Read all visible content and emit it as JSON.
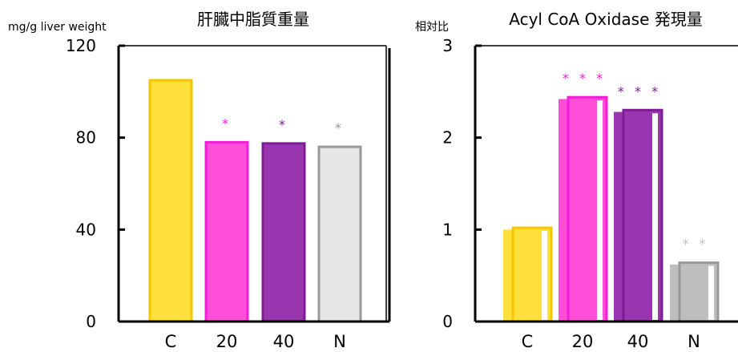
{
  "chart_data": [
    {
      "type": "bar",
      "title": "肝臓中脂質重量",
      "ylabel": "mg/g liver weight",
      "xlabel": "",
      "categories": [
        "C",
        "20",
        "40",
        "N"
      ],
      "values": [
        105,
        78,
        77.5,
        76
      ],
      "ylim": [
        0,
        120
      ],
      "yticks": [
        0,
        40,
        80,
        120
      ],
      "significance": [
        "",
        "*",
        "*",
        "*"
      ],
      "colors": {
        "fill": [
          "#FFE03A",
          "#FF4ED8",
          "#9A35B0",
          "#E6E6E6"
        ],
        "stroke": [
          "#F7C400",
          "#F41CD8",
          "#7E1C95",
          "#999999"
        ],
        "marks": [
          "#000000",
          "#F41CD8",
          "#7E1C95",
          "#999999"
        ]
      },
      "grid": false,
      "legend": "none"
    },
    {
      "type": "bar",
      "title": "Acyl CoA Oxidase 発現量",
      "ylabel": "相対比",
      "xlabel": "",
      "categories": [
        "C",
        "20",
        "40",
        "N"
      ],
      "series": [
        {
          "values": [
            1.0,
            2.42,
            2.28,
            0.62
          ]
        },
        {
          "values": [
            1.02,
            2.44,
            2.3,
            0.64
          ]
        }
      ],
      "ylim": [
        0,
        3
      ],
      "yticks": [
        0,
        1,
        2,
        3
      ],
      "significance": [
        "",
        "***",
        "***",
        "**"
      ],
      "colors": {
        "fill": [
          "#FFE03A",
          "#FF4ED8",
          "#9A35B0",
          "#BEBEBE"
        ],
        "stroke": [
          "#F7C400",
          "#F41CD8",
          "#7E1C95",
          "#999999"
        ],
        "marks": [
          "#000000",
          "#F41CD8",
          "#7E1C95",
          "#BEBEBE"
        ]
      },
      "grid": false,
      "legend": "none"
    }
  ]
}
